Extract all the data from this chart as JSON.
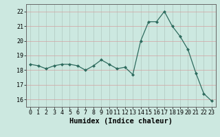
{
  "x": [
    0,
    1,
    2,
    3,
    4,
    5,
    6,
    7,
    8,
    9,
    10,
    11,
    12,
    13,
    14,
    15,
    16,
    17,
    18,
    19,
    20,
    21,
    22,
    23
  ],
  "y": [
    18.4,
    18.3,
    18.1,
    18.3,
    18.4,
    18.4,
    18.3,
    18.0,
    18.3,
    18.7,
    18.4,
    18.1,
    18.2,
    17.7,
    20.0,
    21.3,
    21.3,
    22.0,
    21.0,
    20.3,
    19.4,
    17.8,
    16.4,
    15.9
  ],
  "line_color": "#2e6b5e",
  "marker": "D",
  "marker_size": 2.0,
  "background_color": "#cce8e0",
  "grid_color": "#b0c8c0",
  "grid_color_v": "#d4a0a0",
  "xlabel": "Humidex (Indice chaleur)",
  "ylim": [
    15.5,
    22.5
  ],
  "xlim": [
    -0.5,
    23.5
  ],
  "yticks": [
    16,
    17,
    18,
    19,
    20,
    21,
    22
  ],
  "xticks": [
    0,
    1,
    2,
    3,
    4,
    5,
    6,
    7,
    8,
    9,
    10,
    11,
    12,
    13,
    14,
    15,
    16,
    17,
    18,
    19,
    20,
    21,
    22,
    23
  ],
  "tick_fontsize": 6,
  "xlabel_fontsize": 7.5
}
